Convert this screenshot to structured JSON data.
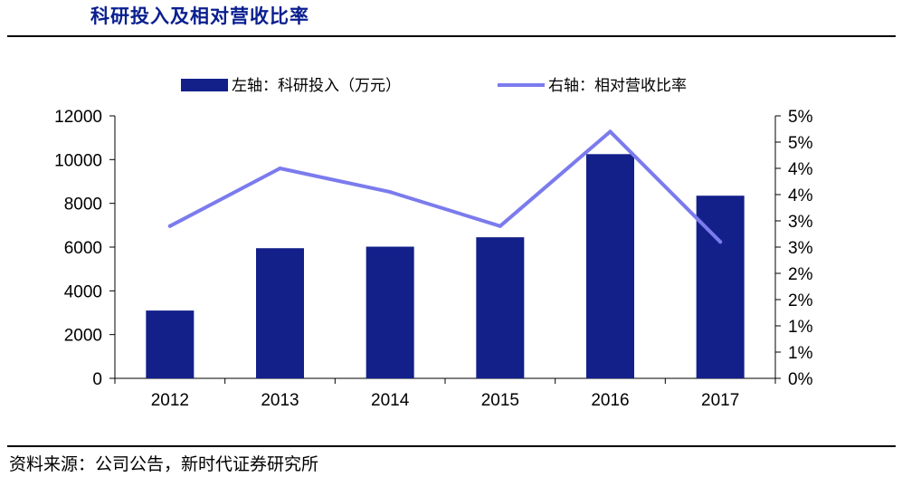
{
  "page": {
    "title": "科研投入及相对营收比率",
    "source": "资料来源：公司公告，新时代证券研究所"
  },
  "colors": {
    "bar": "#13208a",
    "line": "#7b7bee",
    "axis": "#000000",
    "title": "#0a1f8f"
  },
  "chart_data": {
    "type": "bar",
    "title": "科研投入及相对营收比率",
    "categories": [
      "2012",
      "2013",
      "2014",
      "2015",
      "2016",
      "2017"
    ],
    "series": [
      {
        "name": "左轴：科研投入（万元）",
        "type": "bar",
        "axis": "left",
        "values": [
          3100,
          5950,
          6020,
          6450,
          10250,
          8350
        ]
      },
      {
        "name": "右轴：相对营收比率",
        "type": "line",
        "axis": "right",
        "values": [
          2.9,
          4.0,
          3.55,
          2.9,
          4.7,
          2.6
        ]
      }
    ],
    "left_axis": {
      "min": 0,
      "max": 12000,
      "ticks": [
        "0",
        "2000",
        "4000",
        "6000",
        "8000",
        "10000",
        "12000"
      ]
    },
    "right_axis": {
      "min": 0,
      "max": 5,
      "ticks": [
        "0%",
        "1%",
        "1%",
        "2%",
        "2%",
        "3%",
        "3%",
        "4%",
        "4%",
        "5%",
        "5%"
      ]
    },
    "legend_position": "top",
    "grid": false
  }
}
